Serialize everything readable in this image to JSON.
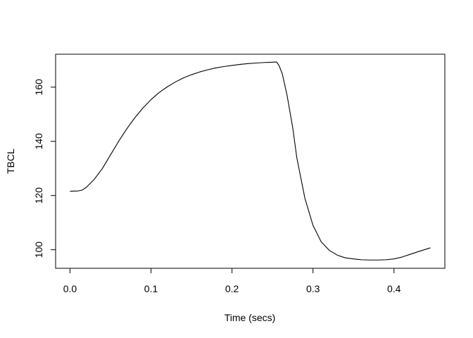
{
  "chart_data": {
    "type": "line",
    "title": "",
    "xlabel": "Time (secs)",
    "ylabel": "TBCL",
    "xlim": [
      -0.0178,
      0.4628
    ],
    "ylim": [
      93.15,
      172.15
    ],
    "grid": false,
    "legend": "none",
    "x_ticks": [
      "0.0",
      "0.1",
      "0.2",
      "0.3",
      "0.4"
    ],
    "y_ticks": [
      "100",
      "120",
      "140",
      "160"
    ],
    "line_color": "#000000",
    "series": [
      {
        "x": [
          0.0,
          0.01,
          0.015,
          0.02,
          0.03,
          0.04,
          0.05,
          0.06,
          0.07,
          0.08,
          0.09,
          0.1,
          0.11,
          0.12,
          0.13,
          0.14,
          0.15,
          0.16,
          0.17,
          0.18,
          0.19,
          0.2,
          0.21,
          0.22,
          0.23,
          0.24,
          0.25,
          0.255,
          0.258,
          0.262,
          0.268,
          0.275,
          0.28,
          0.29,
          0.3,
          0.31,
          0.32,
          0.33,
          0.34,
          0.35,
          0.36,
          0.37,
          0.38,
          0.39,
          0.4,
          0.41,
          0.42,
          0.43,
          0.445
        ],
        "y": [
          121.6,
          121.7,
          122.0,
          123.0,
          126.0,
          130.0,
          135.0,
          140.0,
          144.6,
          148.7,
          152.3,
          155.4,
          158.0,
          160.1,
          161.9,
          163.4,
          164.6,
          165.6,
          166.4,
          167.1,
          167.6,
          168.0,
          168.4,
          168.7,
          168.9,
          169.1,
          169.2,
          169.3,
          168.0,
          165.0,
          157.0,
          145.0,
          134.0,
          119.0,
          109.0,
          103.0,
          99.8,
          98.0,
          97.0,
          96.6,
          96.3,
          96.2,
          96.2,
          96.3,
          96.6,
          97.3,
          98.3,
          99.3,
          100.7
        ]
      }
    ]
  }
}
